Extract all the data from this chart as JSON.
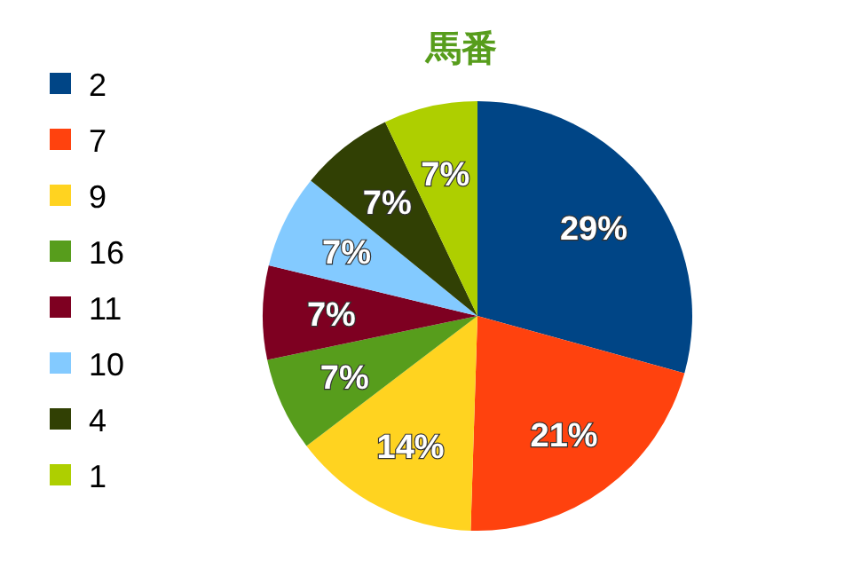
{
  "chart_data": {
    "type": "pie",
    "title": "馬番",
    "categories": [
      "2",
      "7",
      "9",
      "16",
      "11",
      "10",
      "4",
      "1"
    ],
    "values": [
      29,
      21,
      14,
      7,
      7,
      7,
      7,
      7
    ],
    "colors": [
      "#004586",
      "#ff420e",
      "#ffd320",
      "#579d1c",
      "#7e0021",
      "#83caff",
      "#314004",
      "#aecf00"
    ],
    "value_labels": [
      "29%",
      "21%",
      "14%",
      "7%",
      "7%",
      "7%",
      "7%",
      "7%"
    ],
    "legend": "left"
  }
}
